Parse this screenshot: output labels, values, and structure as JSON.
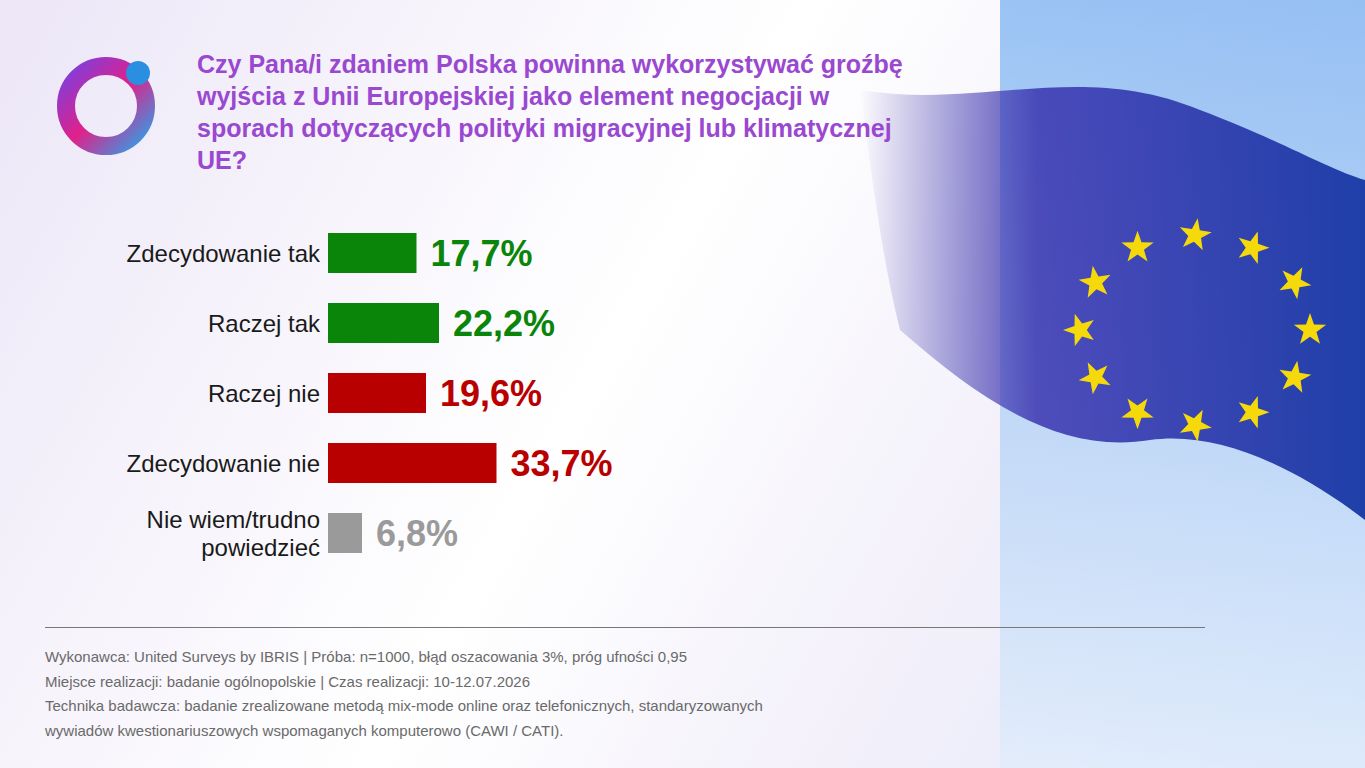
{
  "chart_data": {
    "type": "bar",
    "orientation": "horizontal",
    "title": "Czy Pana/i zdaniem Polska powinna wykorzystywać groźbę wyjścia z Unii Europejskiej jako element negocjacji w sporach dotyczących polityki migracyjnej lub klimatycznej UE?",
    "categories": [
      "Zdecydowanie tak",
      "Raczej tak",
      "Raczej nie",
      "Zdecydowanie nie",
      "Nie wiem/trudno powiedzieć"
    ],
    "values": [
      17.7,
      22.2,
      19.6,
      33.7,
      6.8
    ],
    "value_labels": [
      "17,7%",
      "22,2%",
      "19,6%",
      "33,7%",
      "6,8%"
    ],
    "colors": [
      "#0a850a",
      "#0a850a",
      "#b80000",
      "#b80000",
      "#9a9a9a"
    ],
    "data_labels": true,
    "xlim": [
      0,
      100
    ],
    "tick_labels": "y",
    "grid": false,
    "annotations": [
      "Wykonawca: United Surveys by IBRIS | Próba: n=1000, błąd oszacowania 3%, próg ufności 0,95",
      "Miejsce realizacji: badanie ogólnopolskie | Czas realizacji: 10-12.07.2026",
      "Technika badawcza: badanie zrealizowane metodą mix-mode online oraz telefonicznych, standaryzowanych",
      "wywiadów kwestionariuszowych wspomaganych komputerowo (CAWI / CATI)."
    ]
  }
}
